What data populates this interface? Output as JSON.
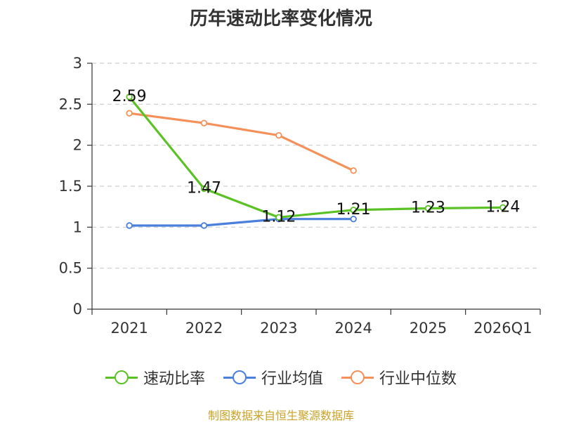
{
  "chart_data": {
    "type": "line",
    "title": "历年速动比率变化情况",
    "categories": [
      "2021",
      "2022",
      "2023",
      "2024",
      "2025",
      "2026Q1"
    ],
    "ylim": [
      0,
      3
    ],
    "yticks": [
      "0",
      "0.5",
      "1",
      "1.5",
      "2",
      "2.5",
      "3"
    ],
    "grid": true,
    "legend_position": "bottom",
    "series": [
      {
        "name": "速动比率",
        "color": "#5bc225",
        "values": [
          2.59,
          1.47,
          1.12,
          1.21,
          1.23,
          1.24
        ],
        "labels": [
          "2.59",
          "1.47",
          "1.12",
          "1.21",
          "1.23",
          "1.24"
        ]
      },
      {
        "name": "行业均值",
        "color": "#4a7fdb",
        "values": [
          1.02,
          1.02,
          1.1,
          1.1,
          null,
          null
        ]
      },
      {
        "name": "行业中位数",
        "color": "#f5905a",
        "values": [
          2.39,
          2.27,
          2.12,
          1.69,
          null,
          null
        ]
      }
    ]
  },
  "source": "制图数据来自恒生聚源数据库"
}
